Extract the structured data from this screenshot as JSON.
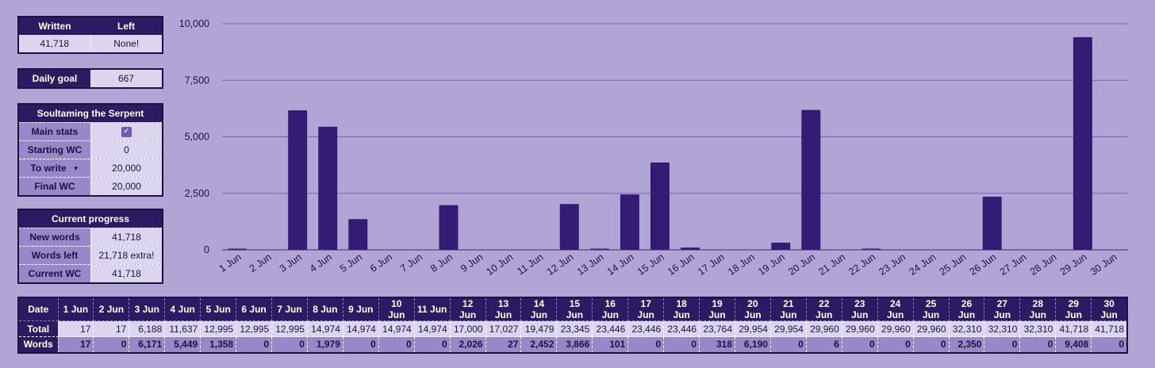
{
  "summary": {
    "written_header": "Written",
    "left_header": "Left",
    "written_value": "41,718",
    "left_value": "None!"
  },
  "daily_goal": {
    "label": "Daily goal",
    "value": "667"
  },
  "project": {
    "title": "Soultaming the Serpent",
    "rows": [
      {
        "label": "Main stats",
        "value": "",
        "type": "checkbox",
        "checked": true
      },
      {
        "label": "Starting WC",
        "value": "0",
        "type": "text"
      },
      {
        "label": "To write",
        "value": "20,000",
        "type": "dropdown"
      },
      {
        "label": "Final WC",
        "value": "20,000",
        "type": "text"
      }
    ]
  },
  "progress": {
    "title": "Current progress",
    "rows": [
      {
        "label": "New words",
        "value": "41,718"
      },
      {
        "label": "Words left",
        "value": "21,718 extra!"
      },
      {
        "label": "Current WC",
        "value": "41,718"
      }
    ]
  },
  "colors": {
    "background": "#b1a5d6",
    "bar": "#341c74",
    "header": "#2b1b63",
    "gridline": "#7866b4"
  },
  "chart_data": {
    "type": "bar",
    "categories": [
      "1 Jun",
      "2 Jun",
      "3 Jun",
      "4 Jun",
      "5 Jun",
      "6 Jun",
      "7 Jun",
      "8 Jun",
      "9 Jun",
      "10 Jun",
      "11 Jun",
      "12 Jun",
      "13 Jun",
      "14 Jun",
      "15 Jun",
      "16 Jun",
      "17 Jun",
      "18 Jun",
      "19 Jun",
      "20 Jun",
      "21 Jun",
      "22 Jun",
      "23 Jun",
      "24 Jun",
      "25 Jun",
      "26 Jun",
      "27 Jun",
      "28 Jun",
      "29 Jun",
      "30 Jun"
    ],
    "values": [
      17,
      0,
      6171,
      5449,
      1358,
      0,
      0,
      1979,
      0,
      0,
      0,
      2026,
      27,
      2452,
      3866,
      101,
      0,
      0,
      318,
      6190,
      0,
      6,
      0,
      0,
      0,
      2350,
      0,
      0,
      9408,
      0
    ],
    "ylim": [
      0,
      10000
    ],
    "yticks": [
      "0",
      "2,500",
      "5,000",
      "7,500",
      "10,000"
    ],
    "ytick_values": [
      0,
      2500,
      5000,
      7500,
      10000
    ],
    "grid": true
  },
  "table": {
    "date_label": "Date",
    "total_label": "Total",
    "words_label": "Words",
    "dates": [
      "1 Jun",
      "2 Jun",
      "3 Jun",
      "4 Jun",
      "5 Jun",
      "6 Jun",
      "7 Jun",
      "8 Jun",
      "9 Jun",
      "10 Jun",
      "11 Jun",
      "12 Jun",
      "13 Jun",
      "14 Jun",
      "15 Jun",
      "16 Jun",
      "17 Jun",
      "18 Jun",
      "19 Jun",
      "20 Jun",
      "21 Jun",
      "22 Jun",
      "23 Jun",
      "24 Jun",
      "25 Jun",
      "26 Jun",
      "27 Jun",
      "28 Jun",
      "29 Jun",
      "30 Jun"
    ],
    "totals": [
      "17",
      "17",
      "6,188",
      "11,637",
      "12,995",
      "12,995",
      "12,995",
      "14,974",
      "14,974",
      "14,974",
      "14,974",
      "17,000",
      "17,027",
      "19,479",
      "23,345",
      "23,446",
      "23,446",
      "23,446",
      "23,764",
      "29,954",
      "29,954",
      "29,960",
      "29,960",
      "29,960",
      "29,960",
      "32,310",
      "32,310",
      "32,310",
      "41,718",
      "41,718"
    ],
    "words": [
      "17",
      "0",
      "6,171",
      "5,449",
      "1,358",
      "0",
      "0",
      "1,979",
      "0",
      "0",
      "0",
      "2,026",
      "27",
      "2,452",
      "3,866",
      "101",
      "0",
      "0",
      "318",
      "6,190",
      "0",
      "6",
      "0",
      "0",
      "0",
      "2,350",
      "0",
      "0",
      "9,408",
      "0"
    ]
  }
}
